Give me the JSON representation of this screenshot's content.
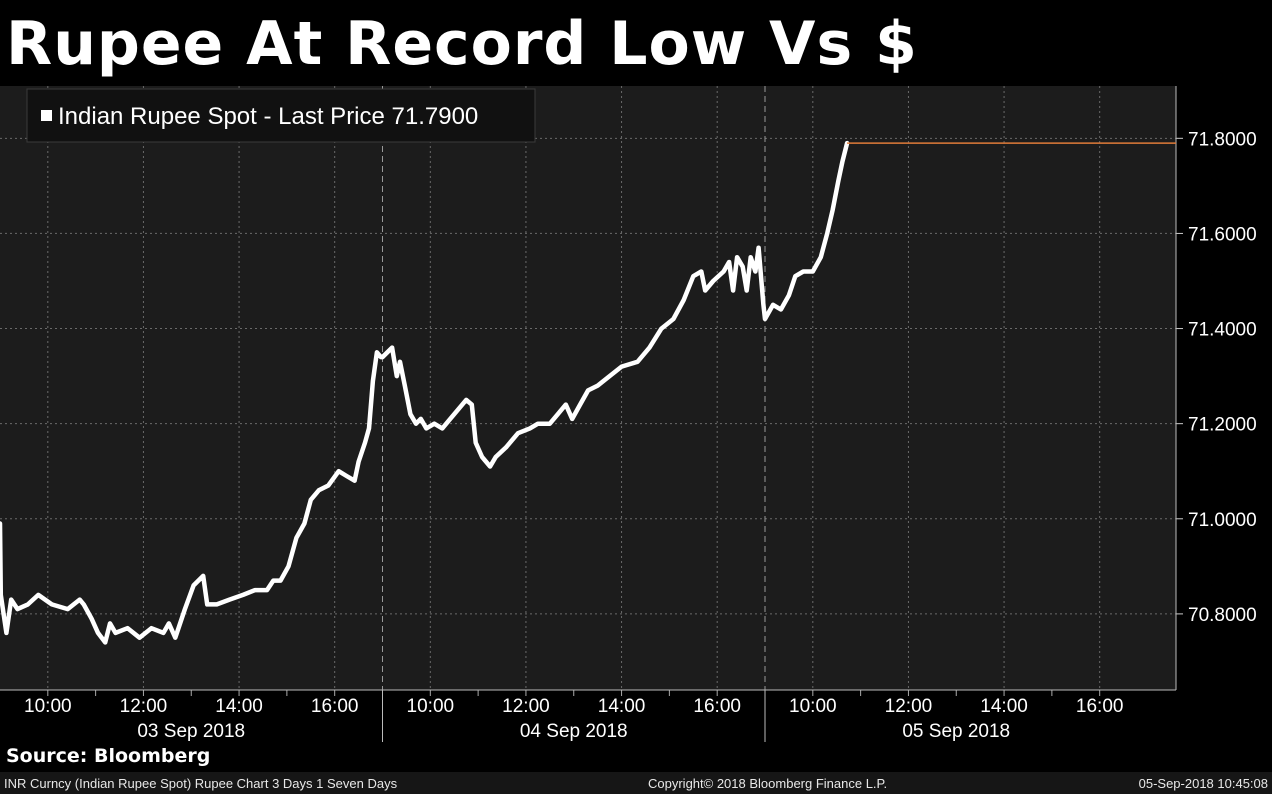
{
  "title": "Rupee At Record Low Vs $",
  "source": "Source: Bloomberg",
  "footer": {
    "left": "INR Curncy (Indian Rupee Spot) Rupee Chart 3 Days 1 Seven Days",
    "middle": "Copyright© 2018 Bloomberg Finance L.P.",
    "right": "05-Sep-2018 10:45:08"
  },
  "colors": {
    "background": "#000000",
    "plot_background": "#1c1c1c",
    "series": "#ffffff",
    "last_price_line": "#e07b39",
    "grid": "#6a6a6a"
  },
  "chart_data": {
    "type": "line",
    "legend": {
      "label": "Indian Rupee Spot - Last Price 71.7900",
      "position": "top-left"
    },
    "y_ticks": [
      "71.8000",
      "71.6000",
      "71.4000",
      "71.2000",
      "71.0000",
      "70.8000"
    ],
    "y_tick_values": [
      71.8,
      71.6,
      71.4,
      71.2,
      71.0,
      70.8
    ],
    "ylim": [
      70.64,
      71.91
    ],
    "y_axis_side": "right",
    "grid": true,
    "last_price": 71.79,
    "days": [
      {
        "date": "03 Sep 2018",
        "ticks": [
          "10:00",
          "12:00",
          "14:00",
          "16:00"
        ]
      },
      {
        "date": "04 Sep 2018",
        "ticks": [
          "10:00",
          "12:00",
          "14:00",
          "16:00"
        ]
      },
      {
        "date": "05 Sep 2018",
        "ticks": [
          "10:00",
          "12:00",
          "14:00",
          "16:00"
        ]
      }
    ],
    "session_hours": [
      9,
      17
    ],
    "series": [
      {
        "name": "Indian Rupee Spot",
        "points": [
          [
            "03 Sep 2018 09:00",
            70.99
          ],
          [
            "03 Sep 2018 09:01",
            70.84
          ],
          [
            "03 Sep 2018 09:08",
            70.76
          ],
          [
            "03 Sep 2018 09:14",
            70.83
          ],
          [
            "03 Sep 2018 09:22",
            70.81
          ],
          [
            "03 Sep 2018 09:35",
            70.82
          ],
          [
            "03 Sep 2018 09:48",
            70.84
          ],
          [
            "03 Sep 2018 10:05",
            70.82
          ],
          [
            "03 Sep 2018 10:25",
            70.81
          ],
          [
            "03 Sep 2018 10:40",
            70.83
          ],
          [
            "03 Sep 2018 10:45",
            70.82
          ],
          [
            "03 Sep 2018 10:55",
            70.79
          ],
          [
            "03 Sep 2018 11:03",
            70.76
          ],
          [
            "03 Sep 2018 11:12",
            70.74
          ],
          [
            "03 Sep 2018 11:18",
            70.78
          ],
          [
            "03 Sep 2018 11:25",
            70.76
          ],
          [
            "03 Sep 2018 11:40",
            70.77
          ],
          [
            "03 Sep 2018 11:55",
            70.75
          ],
          [
            "03 Sep 2018 12:10",
            70.77
          ],
          [
            "03 Sep 2018 12:25",
            70.76
          ],
          [
            "03 Sep 2018 12:32",
            70.78
          ],
          [
            "03 Sep 2018 12:40",
            70.75
          ],
          [
            "03 Sep 2018 12:52",
            70.81
          ],
          [
            "03 Sep 2018 13:03",
            70.86
          ],
          [
            "03 Sep 2018 13:15",
            70.88
          ],
          [
            "03 Sep 2018 13:20",
            70.82
          ],
          [
            "03 Sep 2018 13:32",
            70.82
          ],
          [
            "03 Sep 2018 13:48",
            70.83
          ],
          [
            "03 Sep 2018 14:05",
            70.84
          ],
          [
            "03 Sep 2018 14:20",
            70.85
          ],
          [
            "03 Sep 2018 14:35",
            70.85
          ],
          [
            "03 Sep 2018 14:43",
            70.87
          ],
          [
            "03 Sep 2018 14:52",
            70.87
          ],
          [
            "03 Sep 2018 15:02",
            70.9
          ],
          [
            "03 Sep 2018 15:12",
            70.96
          ],
          [
            "03 Sep 2018 15:22",
            70.99
          ],
          [
            "03 Sep 2018 15:30",
            71.04
          ],
          [
            "03 Sep 2018 15:40",
            71.06
          ],
          [
            "03 Sep 2018 15:52",
            71.07
          ],
          [
            "03 Sep 2018 16:05",
            71.1
          ],
          [
            "03 Sep 2018 16:15",
            71.09
          ],
          [
            "03 Sep 2018 16:25",
            71.08
          ],
          [
            "03 Sep 2018 16:30",
            71.12
          ],
          [
            "03 Sep 2018 16:38",
            71.16
          ],
          [
            "03 Sep 2018 16:43",
            71.19
          ],
          [
            "03 Sep 2018 16:48",
            71.29
          ],
          [
            "03 Sep 2018 16:53",
            71.35
          ],
          [
            "03 Sep 2018 16:58",
            71.34
          ],
          [
            "04 Sep 2018 09:00",
            71.34
          ],
          [
            "04 Sep 2018 09:12",
            71.36
          ],
          [
            "04 Sep 2018 09:18",
            71.3
          ],
          [
            "04 Sep 2018 09:22",
            71.33
          ],
          [
            "04 Sep 2018 09:28",
            71.28
          ],
          [
            "04 Sep 2018 09:35",
            71.22
          ],
          [
            "04 Sep 2018 09:42",
            71.2
          ],
          [
            "04 Sep 2018 09:48",
            71.21
          ],
          [
            "04 Sep 2018 09:55",
            71.19
          ],
          [
            "04 Sep 2018 10:05",
            71.2
          ],
          [
            "04 Sep 2018 10:15",
            71.19
          ],
          [
            "04 Sep 2018 10:25",
            71.21
          ],
          [
            "04 Sep 2018 10:35",
            71.23
          ],
          [
            "04 Sep 2018 10:45",
            71.25
          ],
          [
            "04 Sep 2018 10:52",
            71.24
          ],
          [
            "04 Sep 2018 10:57",
            71.16
          ],
          [
            "04 Sep 2018 11:05",
            71.13
          ],
          [
            "04 Sep 2018 11:15",
            71.11
          ],
          [
            "04 Sep 2018 11:22",
            71.13
          ],
          [
            "04 Sep 2018 11:35",
            71.15
          ],
          [
            "04 Sep 2018 11:50",
            71.18
          ],
          [
            "04 Sep 2018 12:05",
            71.19
          ],
          [
            "04 Sep 2018 12:15",
            71.2
          ],
          [
            "04 Sep 2018 12:30",
            71.2
          ],
          [
            "04 Sep 2018 12:40",
            71.22
          ],
          [
            "04 Sep 2018 12:50",
            71.24
          ],
          [
            "04 Sep 2018 12:58",
            71.21
          ],
          [
            "04 Sep 2018 13:08",
            71.24
          ],
          [
            "04 Sep 2018 13:18",
            71.27
          ],
          [
            "04 Sep 2018 13:30",
            71.28
          ],
          [
            "04 Sep 2018 13:45",
            71.3
          ],
          [
            "04 Sep 2018 14:00",
            71.32
          ],
          [
            "04 Sep 2018 14:20",
            71.33
          ],
          [
            "04 Sep 2018 14:35",
            71.36
          ],
          [
            "04 Sep 2018 14:50",
            71.4
          ],
          [
            "04 Sep 2018 15:05",
            71.42
          ],
          [
            "04 Sep 2018 15:18",
            71.46
          ],
          [
            "04 Sep 2018 15:30",
            71.51
          ],
          [
            "04 Sep 2018 15:40",
            71.52
          ],
          [
            "04 Sep 2018 15:45",
            71.48
          ],
          [
            "04 Sep 2018 15:55",
            71.5
          ],
          [
            "04 Sep 2018 16:08",
            71.52
          ],
          [
            "04 Sep 2018 16:15",
            71.54
          ],
          [
            "04 Sep 2018 16:20",
            71.48
          ],
          [
            "04 Sep 2018 16:25",
            71.55
          ],
          [
            "04 Sep 2018 16:32",
            71.53
          ],
          [
            "04 Sep 2018 16:37",
            71.48
          ],
          [
            "04 Sep 2018 16:42",
            71.55
          ],
          [
            "04 Sep 2018 16:48",
            71.52
          ],
          [
            "04 Sep 2018 16:52",
            71.57
          ],
          [
            "04 Sep 2018 16:58",
            71.45
          ],
          [
            "05 Sep 2018 09:00",
            71.42
          ],
          [
            "05 Sep 2018 09:10",
            71.45
          ],
          [
            "05 Sep 2018 09:20",
            71.44
          ],
          [
            "05 Sep 2018 09:30",
            71.47
          ],
          [
            "05 Sep 2018 09:38",
            71.51
          ],
          [
            "05 Sep 2018 09:48",
            71.52
          ],
          [
            "05 Sep 2018 10:00",
            71.52
          ],
          [
            "05 Sep 2018 10:10",
            71.55
          ],
          [
            "05 Sep 2018 10:18",
            71.6
          ],
          [
            "05 Sep 2018 10:25",
            71.65
          ],
          [
            "05 Sep 2018 10:32",
            71.71
          ],
          [
            "05 Sep 2018 10:37",
            71.75
          ],
          [
            "05 Sep 2018 10:43",
            71.79
          ]
        ]
      }
    ]
  }
}
